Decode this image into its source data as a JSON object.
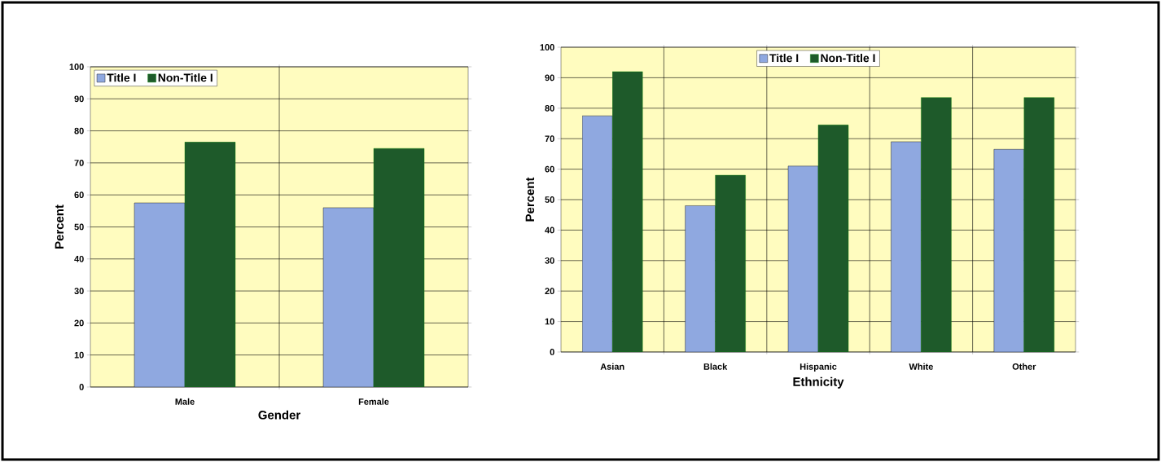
{
  "chart_data": [
    {
      "type": "bar",
      "xlabel": "Gender",
      "ylabel": "Percent",
      "categories": [
        "Male",
        "Female"
      ],
      "series": [
        {
          "name": "Title I",
          "color": "#8fa8e0",
          "values": [
            57.5,
            56
          ]
        },
        {
          "name": "Non-Title I",
          "color": "#1e5a2a",
          "values": [
            76.5,
            74.5
          ]
        }
      ],
      "ylim": [
        0,
        100
      ],
      "yticks": [
        0,
        10,
        20,
        30,
        40,
        50,
        60,
        70,
        80,
        90,
        100
      ],
      "grid": true,
      "legend": "top left"
    },
    {
      "type": "bar",
      "xlabel": "Ethnicity",
      "ylabel": "Percent",
      "categories": [
        "Asian",
        "Black",
        "Hispanic",
        "White",
        "Other"
      ],
      "series": [
        {
          "name": "Title I",
          "color": "#8fa8e0",
          "values": [
            77.5,
            48,
            61,
            69,
            66.5
          ]
        },
        {
          "name": "Non-Title I",
          "color": "#1e5a2a",
          "values": [
            92,
            58,
            74.5,
            83.5,
            83.5
          ]
        }
      ],
      "ylim": [
        0,
        100
      ],
      "yticks": [
        0,
        10,
        20,
        30,
        40,
        50,
        60,
        70,
        80,
        90,
        100
      ],
      "grid": true,
      "legend": "top"
    }
  ]
}
